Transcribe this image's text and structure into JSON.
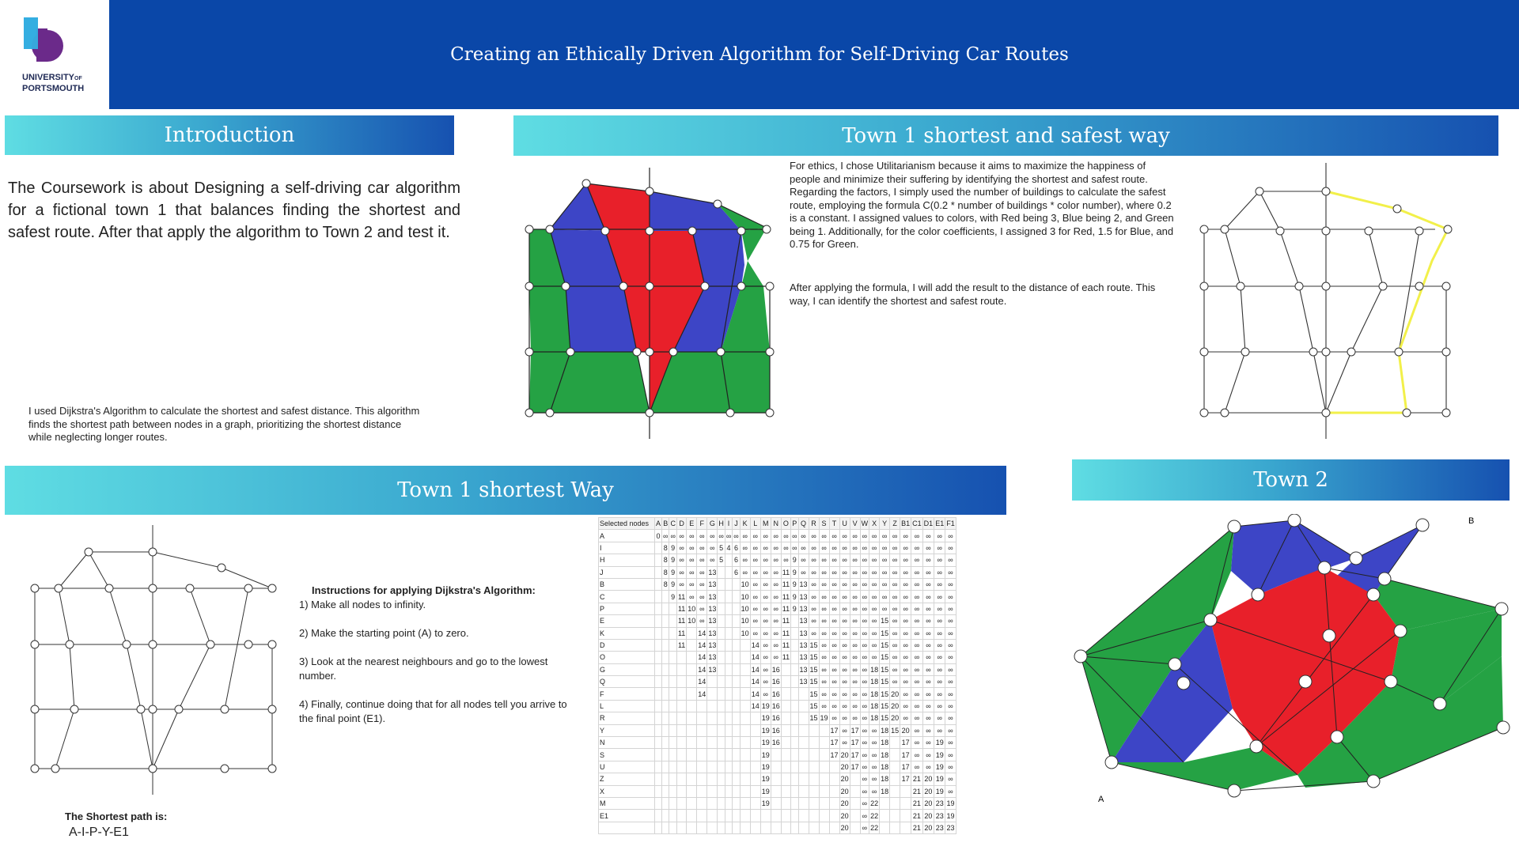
{
  "header": {
    "title": "Creating an Ethically Driven Algorithm for Self-Driving Car Routes",
    "logo_line1": "UNIVERSITY",
    "logo_of": "OF",
    "logo_line2": "PORTSMOUTH",
    "colors": {
      "banner": "#0a47a8",
      "logo_cyan": "#35aee0",
      "logo_purple": "#6b2a8a"
    }
  },
  "intro": {
    "heading": "Introduction",
    "text": "The Coursework is about Designing a self-driving car algorithm for a fictional town 1 that balances finding the shortest and safest route. After that apply the algorithm to Town 2 and test it.",
    "dijkstra_note": "I used Dijkstra's Algorithm to calculate the shortest and safest distance. This algorithm finds the shortest path between nodes in a graph, prioritizing the shortest distance while neglecting longer routes."
  },
  "safest": {
    "heading": "Town 1 shortest and safest way",
    "para1": "For ethics, I chose Utilitarianism because it aims to maximize the happiness of people and minimize their suffering by identifying the shortest and safest route. Regarding the factors, I simply used the number of buildings to calculate the safest route, employing the formula C(0.2 * number of buildings * color number), where 0.2 is a constant. I assigned values to colors, with Red being 3, Blue being 2, and Green being 1. Additionally, for the color coefficients, I assigned 3 for Red, 1.5 for Blue, and 0.75 for Green.",
    "para2": "After applying the formula, I will add the result to the distance of each route. This way, I can identify the shortest and safest route.",
    "colors": {
      "red": "#e8202a",
      "blue": "#3d45c6",
      "green": "#25a244",
      "highlight": "#f2f04a"
    }
  },
  "shortest": {
    "heading": "Town 1 shortest Way",
    "instructions_title": "Instructions for applying Dijkstra's Algorithm:",
    "steps": [
      "1) Make all nodes to infinity.",
      "2) Make the starting point (A) to zero.",
      "3) Look at the nearest neighbours and go to the lowest number.",
      "4) Finally, continue doing that for all nodes tell you arrive to the final point (E1)."
    ],
    "result_label": "The Shortest path is:",
    "result_path": "A-I-P-Y-E1"
  },
  "table": {
    "header_first": "Selected nodes",
    "columns": [
      "A",
      "B",
      "C",
      "D",
      "E",
      "F",
      "G",
      "H",
      "I",
      "J",
      "K",
      "L",
      "M",
      "N",
      "O",
      "P",
      "Q",
      "R",
      "S",
      "T",
      "U",
      "V",
      "W",
      "X",
      "Y",
      "Z",
      "B1",
      "C1",
      "D1",
      "E1",
      "F1"
    ],
    "rows": [
      [
        "A",
        [
          "0",
          "∞",
          "∞",
          "∞",
          "∞",
          "∞",
          "∞",
          "∞",
          "∞",
          "∞",
          "∞",
          "∞",
          "∞",
          "∞",
          "∞",
          "∞",
          "∞",
          "∞",
          "∞",
          "∞",
          "∞",
          "∞",
          "∞",
          "∞",
          "∞",
          "∞",
          "∞",
          "∞",
          "∞",
          "∞",
          "∞"
        ]
      ],
      [
        "I",
        [
          "",
          "8",
          "9",
          "∞",
          "∞",
          "∞",
          "∞",
          "5",
          "4",
          "6",
          "∞",
          "∞",
          "∞",
          "∞",
          "∞",
          "∞",
          "∞",
          "∞",
          "∞",
          "∞",
          "∞",
          "∞",
          "∞",
          "∞",
          "∞",
          "∞",
          "∞",
          "∞",
          "∞",
          "∞",
          "∞"
        ]
      ],
      [
        "H",
        [
          "",
          "8",
          "9",
          "∞",
          "∞",
          "∞",
          "∞",
          "5",
          "",
          "6",
          "∞",
          "∞",
          "∞",
          "∞",
          "∞",
          "9",
          "∞",
          "∞",
          "∞",
          "∞",
          "∞",
          "∞",
          "∞",
          "∞",
          "∞",
          "∞",
          "∞",
          "∞",
          "∞",
          "∞",
          "∞"
        ]
      ],
      [
        "J",
        [
          "",
          "8",
          "9",
          "∞",
          "∞",
          "∞",
          "13",
          "",
          "",
          "6",
          "∞",
          "∞",
          "∞",
          "∞",
          "11",
          "9",
          "∞",
          "∞",
          "∞",
          "∞",
          "∞",
          "∞",
          "∞",
          "∞",
          "∞",
          "∞",
          "∞",
          "∞",
          "∞",
          "∞",
          "∞"
        ]
      ],
      [
        "B",
        [
          "",
          "8",
          "9",
          "∞",
          "∞",
          "∞",
          "13",
          "",
          "",
          "",
          "10",
          "∞",
          "∞",
          "∞",
          "11",
          "9",
          "13",
          "∞",
          "∞",
          "∞",
          "∞",
          "∞",
          "∞",
          "∞",
          "∞",
          "∞",
          "∞",
          "∞",
          "∞",
          "∞",
          "∞"
        ]
      ],
      [
        "C",
        [
          "",
          "",
          "9",
          "11",
          "∞",
          "∞",
          "13",
          "",
          "",
          "",
          "10",
          "∞",
          "∞",
          "∞",
          "11",
          "9",
          "13",
          "∞",
          "∞",
          "∞",
          "∞",
          "∞",
          "∞",
          "∞",
          "∞",
          "∞",
          "∞",
          "∞",
          "∞",
          "∞",
          "∞"
        ]
      ],
      [
        "P",
        [
          "",
          "",
          "",
          "11",
          "10",
          "∞",
          "13",
          "",
          "",
          "",
          "10",
          "∞",
          "∞",
          "∞",
          "11",
          "9",
          "13",
          "∞",
          "∞",
          "∞",
          "∞",
          "∞",
          "∞",
          "∞",
          "∞",
          "∞",
          "∞",
          "∞",
          "∞",
          "∞",
          "∞"
        ]
      ],
      [
        "E",
        [
          "",
          "",
          "",
          "11",
          "10",
          "∞",
          "13",
          "",
          "",
          "",
          "10",
          "∞",
          "∞",
          "∞",
          "11",
          "",
          "13",
          "∞",
          "∞",
          "∞",
          "∞",
          "∞",
          "∞",
          "∞",
          "15",
          "∞",
          "∞",
          "∞",
          "∞",
          "∞",
          "∞"
        ]
      ],
      [
        "K",
        [
          "",
          "",
          "",
          "11",
          "",
          "14",
          "13",
          "",
          "",
          "",
          "10",
          "∞",
          "∞",
          "∞",
          "11",
          "",
          "13",
          "∞",
          "∞",
          "∞",
          "∞",
          "∞",
          "∞",
          "∞",
          "15",
          "∞",
          "∞",
          "∞",
          "∞",
          "∞",
          "∞"
        ]
      ],
      [
        "D",
        [
          "",
          "",
          "",
          "11",
          "",
          "14",
          "13",
          "",
          "",
          "",
          "",
          "14",
          "∞",
          "∞",
          "11",
          "",
          "13",
          "15",
          "∞",
          "∞",
          "∞",
          "∞",
          "∞",
          "∞",
          "15",
          "∞",
          "∞",
          "∞",
          "∞",
          "∞",
          "∞"
        ]
      ],
      [
        "O",
        [
          "",
          "",
          "",
          "",
          "",
          "14",
          "13",
          "",
          "",
          "",
          "",
          "14",
          "∞",
          "∞",
          "11",
          "",
          "13",
          "15",
          "∞",
          "∞",
          "∞",
          "∞",
          "∞",
          "∞",
          "15",
          "∞",
          "∞",
          "∞",
          "∞",
          "∞",
          "∞"
        ]
      ],
      [
        "G",
        [
          "",
          "",
          "",
          "",
          "",
          "14",
          "13",
          "",
          "",
          "",
          "",
          "14",
          "∞",
          "16",
          "",
          "",
          "13",
          "15",
          "∞",
          "∞",
          "∞",
          "∞",
          "∞",
          "18",
          "15",
          "∞",
          "∞",
          "∞",
          "∞",
          "∞",
          "∞"
        ]
      ],
      [
        "Q",
        [
          "",
          "",
          "",
          "",
          "",
          "14",
          "",
          "",
          "",
          "",
          "",
          "14",
          "∞",
          "16",
          "",
          "",
          "13",
          "15",
          "∞",
          "∞",
          "∞",
          "∞",
          "∞",
          "18",
          "15",
          "∞",
          "∞",
          "∞",
          "∞",
          "∞",
          "∞"
        ]
      ],
      [
        "F",
        [
          "",
          "",
          "",
          "",
          "",
          "14",
          "",
          "",
          "",
          "",
          "",
          "14",
          "∞",
          "16",
          "",
          "",
          "",
          "15",
          "∞",
          "∞",
          "∞",
          "∞",
          "∞",
          "18",
          "15",
          "20",
          "∞",
          "∞",
          "∞",
          "∞",
          "∞"
        ]
      ],
      [
        "L",
        [
          "",
          "",
          "",
          "",
          "",
          "",
          "",
          "",
          "",
          "",
          "",
          "14",
          "19",
          "16",
          "",
          "",
          "",
          "15",
          "∞",
          "∞",
          "∞",
          "∞",
          "∞",
          "18",
          "15",
          "20",
          "∞",
          "∞",
          "∞",
          "∞",
          "∞"
        ]
      ],
      [
        "R",
        [
          "",
          "",
          "",
          "",
          "",
          "",
          "",
          "",
          "",
          "",
          "",
          "",
          "19",
          "16",
          "",
          "",
          "",
          "15",
          "19",
          "∞",
          "∞",
          "∞",
          "∞",
          "18",
          "15",
          "20",
          "∞",
          "∞",
          "∞",
          "∞",
          "∞"
        ]
      ],
      [
        "Y",
        [
          "",
          "",
          "",
          "",
          "",
          "",
          "",
          "",
          "",
          "",
          "",
          "",
          "19",
          "16",
          "",
          "",
          "",
          "",
          "",
          "17",
          "∞",
          "17",
          "∞",
          "∞",
          "18",
          "15",
          "20",
          "∞",
          "∞",
          "∞",
          "∞"
        ]
      ],
      [
        "N",
        [
          "",
          "",
          "",
          "",
          "",
          "",
          "",
          "",
          "",
          "",
          "",
          "",
          "19",
          "16",
          "",
          "",
          "",
          "",
          "",
          "17",
          "∞",
          "17",
          "∞",
          "∞",
          "18",
          "",
          "17",
          "∞",
          "∞",
          "19",
          "∞"
        ]
      ],
      [
        "S",
        [
          "",
          "",
          "",
          "",
          "",
          "",
          "",
          "",
          "",
          "",
          "",
          "",
          "19",
          "",
          "",
          "",
          "",
          "",
          "",
          "17",
          "20",
          "17",
          "∞",
          "∞",
          "18",
          "",
          "17",
          "∞",
          "∞",
          "19",
          "∞"
        ]
      ],
      [
        "U",
        [
          "",
          "",
          "",
          "",
          "",
          "",
          "",
          "",
          "",
          "",
          "",
          "",
          "19",
          "",
          "",
          "",
          "",
          "",
          "",
          "",
          "20",
          "17",
          "∞",
          "∞",
          "18",
          "",
          "17",
          "∞",
          "∞",
          "19",
          "∞"
        ]
      ],
      [
        "Z",
        [
          "",
          "",
          "",
          "",
          "",
          "",
          "",
          "",
          "",
          "",
          "",
          "",
          "19",
          "",
          "",
          "",
          "",
          "",
          "",
          "",
          "20",
          "",
          "∞",
          "∞",
          "18",
          "",
          "17",
          "21",
          "20",
          "19",
          "∞"
        ]
      ],
      [
        "X",
        [
          "",
          "",
          "",
          "",
          "",
          "",
          "",
          "",
          "",
          "",
          "",
          "",
          "19",
          "",
          "",
          "",
          "",
          "",
          "",
          "",
          "20",
          "",
          "∞",
          "∞",
          "18",
          "",
          "",
          "21",
          "20",
          "19",
          "∞"
        ]
      ],
      [
        "M",
        [
          "",
          "",
          "",
          "",
          "",
          "",
          "",
          "",
          "",
          "",
          "",
          "",
          "19",
          "",
          "",
          "",
          "",
          "",
          "",
          "",
          "20",
          "",
          "∞",
          "22",
          "",
          "",
          "",
          "21",
          "20",
          "23",
          "19"
        ]
      ],
      [
        "E1",
        [
          "",
          "",
          "",
          "",
          "",
          "",
          "",
          "",
          "",
          "",
          "",
          "",
          "",
          "",
          "",
          "",
          "",
          "",
          "",
          "",
          "20",
          "",
          "∞",
          "22",
          "",
          "",
          "",
          "21",
          "20",
          "23",
          "19"
        ]
      ],
      [
        "",
        [
          "",
          "",
          "",
          "",
          "",
          "",
          "",
          "",
          "",
          "",
          "",
          "",
          "",
          "",
          "",
          "",
          "",
          "",
          "",
          "",
          "20",
          "",
          "∞",
          "22",
          "",
          "",
          "",
          "21",
          "20",
          "23",
          "23"
        ]
      ]
    ]
  },
  "town2": {
    "heading": "Town 2",
    "label_A": "A",
    "label_B": "B"
  }
}
